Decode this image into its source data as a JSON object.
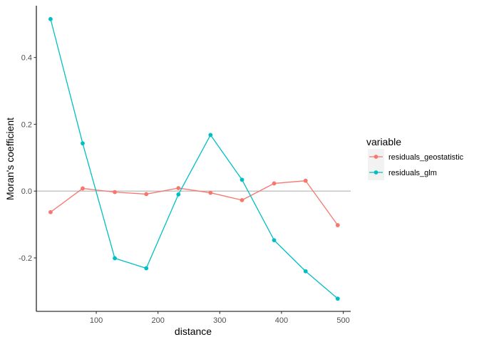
{
  "chart_data": {
    "type": "line",
    "xlabel": "distance",
    "ylabel": "Moran's coefficient",
    "xlim": [
      3,
      512
    ],
    "ylim": [
      -0.36,
      0.555
    ],
    "x_ticks": [
      100,
      200,
      300,
      400,
      500
    ],
    "y_ticks": [
      -0.2,
      0.0,
      0.2,
      0.4
    ],
    "y_tick_labels": [
      "-0.2",
      "0.0",
      "0.2",
      "0.4"
    ],
    "reference_line": {
      "y": 0,
      "color": "#b3b3b3"
    },
    "grid": false,
    "legend": {
      "title": "variable",
      "placement": "right"
    },
    "x": [
      26,
      78,
      130,
      181,
      233,
      285,
      336,
      388,
      439,
      491
    ],
    "series": [
      {
        "name": "residuals_geostatistic",
        "color": "#F8766D",
        "values": [
          -0.063,
          0.008,
          -0.003,
          -0.009,
          0.009,
          -0.005,
          -0.027,
          0.023,
          0.031,
          -0.102
        ]
      },
      {
        "name": "residuals_glm",
        "color": "#00BFC4",
        "values": [
          0.515,
          0.143,
          -0.201,
          -0.231,
          -0.01,
          0.168,
          0.034,
          -0.147,
          -0.24,
          -0.322
        ]
      }
    ]
  }
}
